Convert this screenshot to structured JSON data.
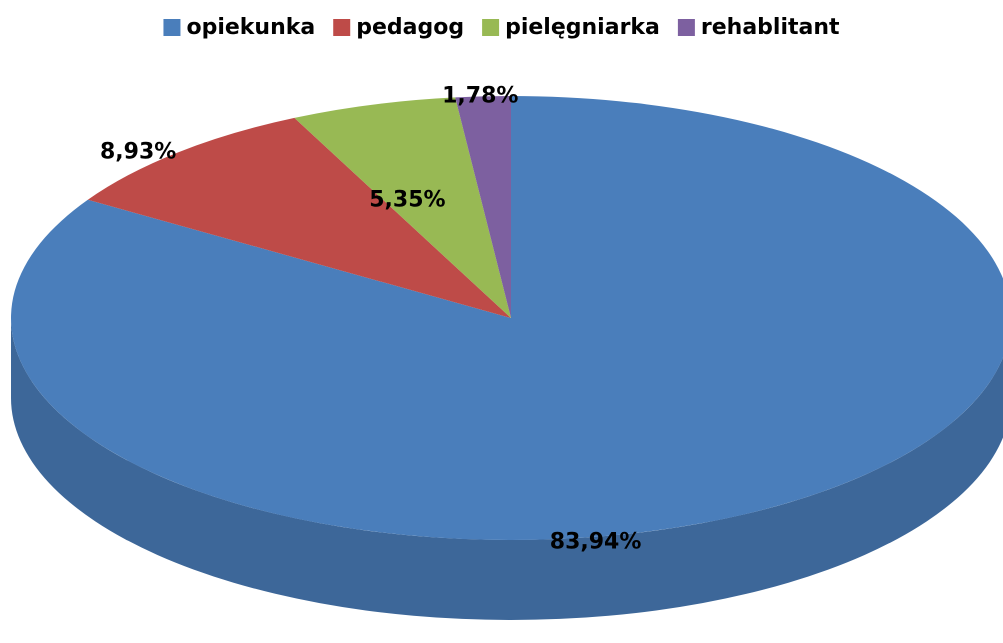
{
  "chart_data": {
    "type": "pie",
    "categories": [
      "opiekunka",
      "pedagog",
      "pielęgniarka",
      "rehablitant"
    ],
    "values": [
      83.94,
      8.93,
      5.35,
      1.78
    ],
    "value_labels": [
      "83,94%",
      "8,93%",
      "5,35%",
      "1,78%"
    ],
    "colors": [
      "#4a7ebb",
      "#be4b48",
      "#98b954",
      "#7d60a0"
    ],
    "legend": "top"
  }
}
